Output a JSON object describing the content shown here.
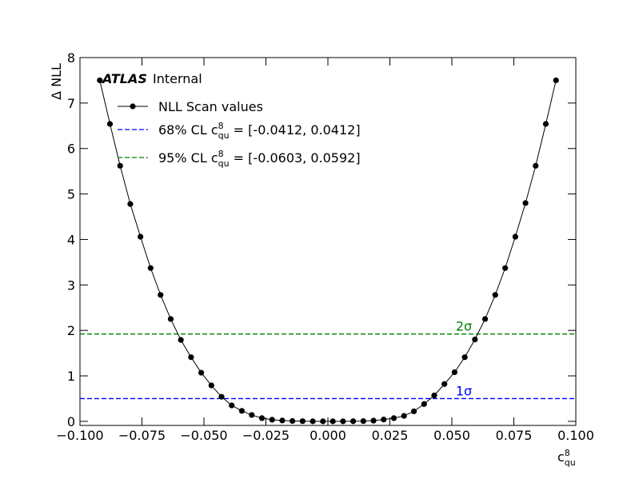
{
  "chart_data": {
    "type": "line",
    "branding": {
      "experiment": "ATLAS",
      "status": "Internal"
    },
    "xlabel": {
      "symbol": "c",
      "sup": "8",
      "sub": "qu"
    },
    "ylabel": "Δ NLL",
    "xlim": [
      -0.1,
      0.1
    ],
    "ylim": [
      -0.09,
      8
    ],
    "xticks": [
      {
        "value": -0.1,
        "label": "−0.100"
      },
      {
        "value": -0.075,
        "label": "−0.075"
      },
      {
        "value": -0.05,
        "label": "−0.050"
      },
      {
        "value": -0.025,
        "label": "−0.025"
      },
      {
        "value": 0,
        "label": "0.000"
      },
      {
        "value": 0.025,
        "label": "0.025"
      },
      {
        "value": 0.05,
        "label": "0.050"
      },
      {
        "value": 0.075,
        "label": "0.075"
      },
      {
        "value": 0.1,
        "label": "0.100"
      }
    ],
    "yticks": [
      0,
      1,
      2,
      3,
      4,
      5,
      6,
      7,
      8
    ],
    "series": [
      {
        "name": "NLL Scan values",
        "color": "#000000",
        "x": [
          -0.092,
          -0.0879,
          -0.0838,
          -0.0797,
          -0.0756,
          -0.0715,
          -0.0675,
          -0.0634,
          -0.0593,
          -0.0552,
          -0.0511,
          -0.047,
          -0.0429,
          -0.0388,
          -0.0347,
          -0.0307,
          -0.0266,
          -0.0225,
          -0.0184,
          -0.0143,
          -0.0102,
          -0.0061,
          -0.002,
          0.002,
          0.0061,
          0.0102,
          0.0143,
          0.0184,
          0.0225,
          0.0266,
          0.0307,
          0.0347,
          0.0388,
          0.0429,
          0.047,
          0.0511,
          0.0552,
          0.0593,
          0.0634,
          0.0675,
          0.0715,
          0.0756,
          0.0797,
          0.0838,
          0.0879,
          0.092
        ],
        "values": [
          7.5,
          6.54,
          5.62,
          4.78,
          4.06,
          3.37,
          2.78,
          2.25,
          1.79,
          1.41,
          1.07,
          0.79,
          0.54,
          0.35,
          0.23,
          0.14,
          0.07,
          0.035,
          0.018,
          0.008,
          0.003,
          0,
          0,
          0,
          0,
          0.002,
          0.005,
          0.015,
          0.04,
          0.07,
          0.12,
          0.22,
          0.38,
          0.57,
          0.82,
          1.08,
          1.41,
          1.8,
          2.25,
          2.78,
          3.37,
          4.06,
          4.8,
          5.62,
          6.54,
          7.5
        ]
      }
    ],
    "hlines": [
      {
        "value": 0.5,
        "color": "#0000ff",
        "label": "1σ",
        "legend": {
          "prefix": "68% CL ",
          "symbol": "c",
          "sup": "8",
          "sub": "qu",
          "suffix": " = [-0.0412, 0.0412]"
        }
      },
      {
        "value": 1.92,
        "color": "#008000",
        "label": "2σ",
        "legend": {
          "prefix": "95% CL ",
          "symbol": "c",
          "sup": "8",
          "sub": "qu",
          "suffix": " = [-0.0603, 0.0592]"
        }
      }
    ]
  }
}
